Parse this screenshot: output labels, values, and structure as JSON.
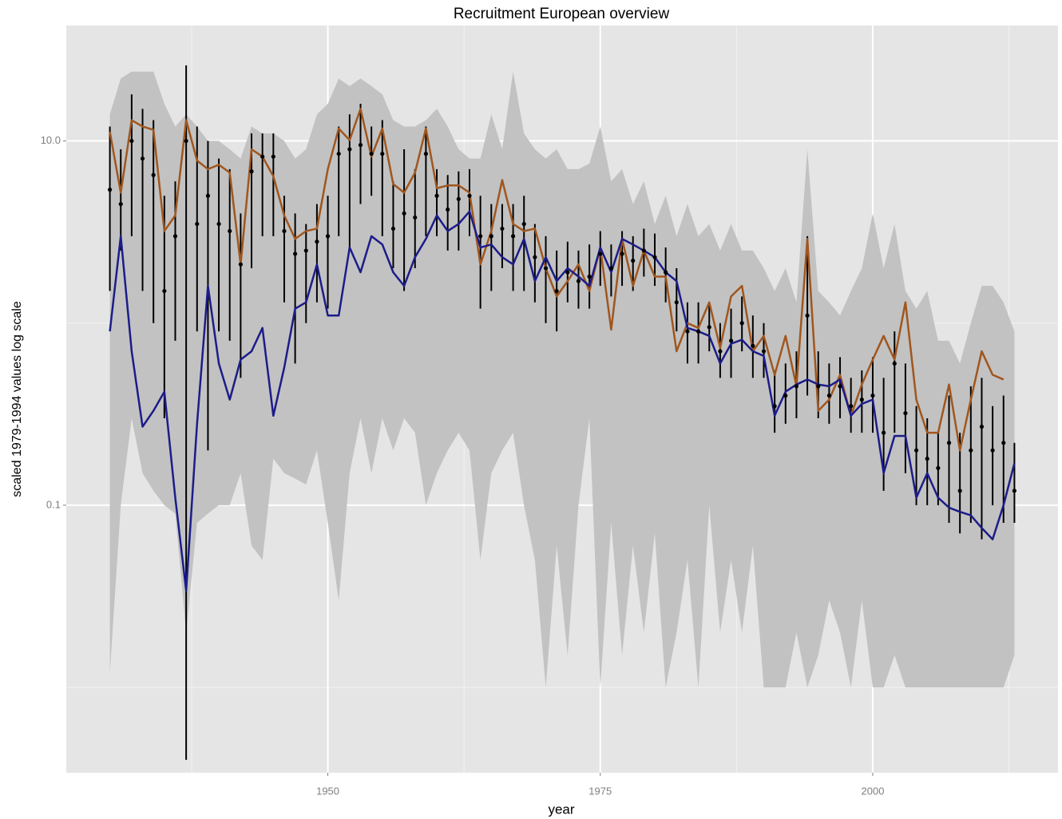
{
  "chart_data": {
    "type": "line",
    "title": "Recruitment European overview",
    "x_label": "year",
    "y_label": "scaled 1979-1994 values log scale",
    "log_y": true,
    "grid": true,
    "xlim": [
      1926,
      2017
    ],
    "ylim": [
      0.0034,
      43
    ],
    "xticks": [
      1950,
      1975,
      2000
    ],
    "x_minor_ticks": [
      1937.5,
      1962.5,
      1987.5,
      2012.5
    ],
    "yticks": [
      0.1,
      {
        "value": 10,
        "label": "10.0"
      }
    ],
    "y_minor_ticks": [
      0.01,
      1
    ],
    "x": [
      1930,
      1931,
      1932,
      1933,
      1934,
      1935,
      1936,
      1937,
      1938,
      1939,
      1940,
      1941,
      1942,
      1943,
      1944,
      1945,
      1946,
      1947,
      1948,
      1949,
      1950,
      1951,
      1952,
      1953,
      1954,
      1955,
      1956,
      1957,
      1958,
      1959,
      1960,
      1961,
      1962,
      1963,
      1964,
      1965,
      1966,
      1967,
      1968,
      1969,
      1970,
      1971,
      1972,
      1973,
      1974,
      1975,
      1976,
      1977,
      1978,
      1979,
      1980,
      1981,
      1982,
      1983,
      1984,
      1985,
      1986,
      1987,
      1988,
      1989,
      1990,
      1991,
      1992,
      1993,
      1994,
      1995,
      1996,
      1997,
      1998,
      1999,
      2000,
      2001,
      2002,
      2003,
      2004,
      2005,
      2006,
      2007,
      2008,
      2009,
      2010,
      2011,
      2012,
      2013
    ],
    "ribbon": {
      "color": "#c2c2c2",
      "low": [
        0.012,
        0.1,
        0.3,
        0.15,
        0.12,
        0.1,
        0.09,
        0.02,
        0.08,
        0.09,
        0.1,
        0.1,
        0.15,
        0.06,
        0.05,
        0.18,
        0.15,
        0.14,
        0.13,
        0.2,
        0.08,
        0.03,
        0.15,
        0.3,
        0.15,
        0.3,
        0.2,
        0.3,
        0.25,
        0.1,
        0.15,
        0.2,
        0.25,
        0.2,
        0.05,
        0.15,
        0.2,
        0.25,
        0.1,
        0.05,
        0.01,
        0.06,
        0.015,
        0.1,
        0.3,
        0.01,
        0.08,
        0.015,
        0.06,
        0.02,
        0.07,
        0.01,
        0.02,
        0.05,
        0.01,
        0.1,
        0.02,
        0.05,
        0.02,
        0.06,
        0.01,
        0.01,
        0.01,
        0.02,
        0.01,
        0.015,
        0.03,
        0.02,
        0.01,
        0.03,
        0.01,
        0.01,
        0.015,
        0.01,
        0.01,
        0.01,
        0.01,
        0.01,
        0.01,
        0.01,
        0.01,
        0.01,
        0.01,
        0.015
      ],
      "high": [
        14,
        22,
        24,
        24,
        24,
        16,
        12,
        14,
        12,
        10,
        10,
        9,
        8,
        12,
        11,
        11,
        10,
        8,
        9,
        14,
        16,
        22,
        20,
        22,
        20,
        18,
        13,
        12,
        12,
        13,
        15,
        12,
        9,
        8,
        8,
        14,
        9,
        24,
        11,
        9,
        8,
        9,
        7,
        7,
        7.5,
        12,
        6,
        7,
        4.5,
        6,
        3.5,
        5,
        3,
        4.5,
        3,
        3.5,
        2.5,
        3.5,
        2.5,
        2.5,
        2.0,
        1.5,
        2,
        1.3,
        9,
        1.5,
        1.3,
        1.1,
        1.5,
        2,
        4,
        2,
        3.5,
        1.5,
        1.2,
        1.5,
        0.8,
        0.8,
        0.6,
        1.0,
        1.6,
        1.6,
        1.3,
        0.9
      ]
    },
    "series": [
      {
        "color": "#a0561e",
        "values": [
          11.2,
          5.2,
          13,
          12,
          11.5,
          3.2,
          3.9,
          13,
          7.8,
          7,
          7.4,
          6.7,
          2.1,
          9,
          8.2,
          6.4,
          3.9,
          2.9,
          3.2,
          3.3,
          7,
          11.7,
          10.1,
          15,
          8.2,
          11.7,
          5.8,
          5.2,
          6.7,
          11.7,
          5.5,
          5.7,
          5.7,
          5.2,
          2.1,
          3.2,
          6.1,
          3.5,
          3.2,
          3.3,
          2.0,
          1.4,
          1.7,
          2.1,
          1.5,
          2.6,
          0.92,
          2.9,
          1.6,
          2.5,
          1.8,
          1.8,
          0.7,
          1.0,
          0.94,
          1.3,
          0.73,
          1.4,
          1.6,
          0.7,
          0.85,
          0.52,
          0.85,
          0.45,
          2.9,
          0.33,
          0.38,
          0.52,
          0.31,
          0.46,
          0.63,
          0.85,
          0.63,
          1.3,
          0.38,
          0.25,
          0.25,
          0.46,
          0.2,
          0.38,
          0.7,
          0.52,
          0.49,
          null
        ]
      },
      {
        "color": "#1c1c8a",
        "values": [
          0.9,
          3.0,
          0.7,
          0.27,
          0.33,
          0.42,
          0.11,
          0.034,
          0.28,
          1.6,
          0.6,
          0.38,
          0.63,
          0.7,
          0.94,
          0.31,
          0.57,
          1.2,
          1.3,
          2.1,
          1.1,
          1.1,
          2.6,
          1.9,
          3.0,
          2.7,
          1.9,
          1.6,
          2.3,
          2.9,
          3.9,
          3.2,
          3.5,
          4.1,
          2.6,
          2.7,
          2.3,
          2.1,
          2.9,
          1.7,
          2.3,
          1.7,
          2.0,
          1.8,
          1.6,
          2.6,
          1.9,
          2.9,
          2.7,
          2.5,
          2.3,
          1.9,
          1.7,
          0.94,
          0.9,
          0.85,
          0.6,
          0.77,
          0.81,
          0.7,
          0.66,
          0.31,
          0.42,
          0.46,
          0.49,
          0.46,
          0.45,
          0.49,
          0.31,
          0.36,
          0.38,
          0.15,
          0.24,
          0.24,
          0.11,
          0.15,
          0.11,
          0.097,
          0.092,
          0.088,
          0.075,
          0.065,
          0.1,
          0.17
        ]
      }
    ],
    "points": {
      "color": "#000000",
      "values": [
        5.4,
        4.5,
        10,
        8,
        6.5,
        1.5,
        3,
        10,
        3.5,
        5,
        3.5,
        3.2,
        2.1,
        6.8,
        8.2,
        8.2,
        3.2,
        2.4,
        2.5,
        2.8,
        3,
        8.5,
        9,
        9.5,
        8.5,
        8.5,
        3.3,
        4,
        3.8,
        8.5,
        5,
        4.2,
        4.8,
        5,
        3,
        3,
        3.3,
        3,
        3.5,
        2.3,
        2,
        1.5,
        1.9,
        1.7,
        1.8,
        2.4,
        2.0,
        2.4,
        2.2,
        2.5,
        2.3,
        1.9,
        1.3,
        0.9,
        0.9,
        0.95,
        0.7,
        0.8,
        1.0,
        0.75,
        0.7,
        0.35,
        0.4,
        0.45,
        1.1,
        0.45,
        0.4,
        0.45,
        0.35,
        0.38,
        0.4,
        0.25,
        0.6,
        0.32,
        0.2,
        0.18,
        0.16,
        0.22,
        0.12,
        0.2,
        0.27,
        0.2,
        0.22,
        0.12
      ],
      "low": [
        1.5,
        2.5,
        3,
        1.5,
        1.0,
        0.3,
        0.8,
        0.004,
        0.9,
        0.2,
        0.9,
        0.8,
        0.5,
        2.0,
        3,
        3,
        1.3,
        0.6,
        1.0,
        1.3,
        1.2,
        3,
        2.5,
        4.5,
        5,
        3,
        2,
        1.5,
        2,
        3,
        3,
        2.5,
        2.5,
        3,
        1.2,
        1.5,
        2,
        1.5,
        1.5,
        1.3,
        1,
        0.9,
        1.3,
        1.2,
        1.2,
        1.6,
        1.4,
        1.6,
        1.5,
        1.8,
        1.6,
        1.3,
        0.9,
        0.6,
        0.6,
        0.7,
        0.5,
        0.5,
        0.7,
        0.5,
        0.5,
        0.25,
        0.28,
        0.3,
        0.4,
        0.3,
        0.28,
        0.3,
        0.25,
        0.25,
        0.25,
        0.12,
        0.25,
        0.15,
        0.1,
        0.1,
        0.1,
        0.08,
        0.07,
        0.08,
        0.065,
        0.1,
        0.08,
        0.08
      ],
      "high": [
        12,
        9,
        18,
        15,
        13,
        5,
        6,
        26,
        12,
        10,
        8,
        7,
        4,
        11,
        11,
        11,
        5,
        4,
        3.5,
        4.5,
        5,
        12,
        14,
        16,
        12,
        13,
        6,
        9,
        7,
        12,
        7,
        6.5,
        6.8,
        7,
        5,
        4.5,
        4.5,
        4.5,
        5,
        3.5,
        3,
        2.5,
        2.8,
        2.5,
        2.7,
        3.2,
        2.7,
        3.2,
        3.0,
        3.3,
        3.1,
        2.6,
        2.0,
        1.3,
        1.3,
        1.3,
        1.0,
        1.2,
        1.4,
        1.1,
        1.0,
        0.55,
        0.6,
        0.7,
        3,
        0.7,
        0.6,
        0.65,
        0.5,
        0.55,
        0.65,
        0.5,
        0.9,
        0.6,
        0.35,
        0.3,
        0.25,
        0.4,
        0.25,
        0.45,
        0.5,
        0.35,
        0.4,
        0.22
      ]
    }
  }
}
